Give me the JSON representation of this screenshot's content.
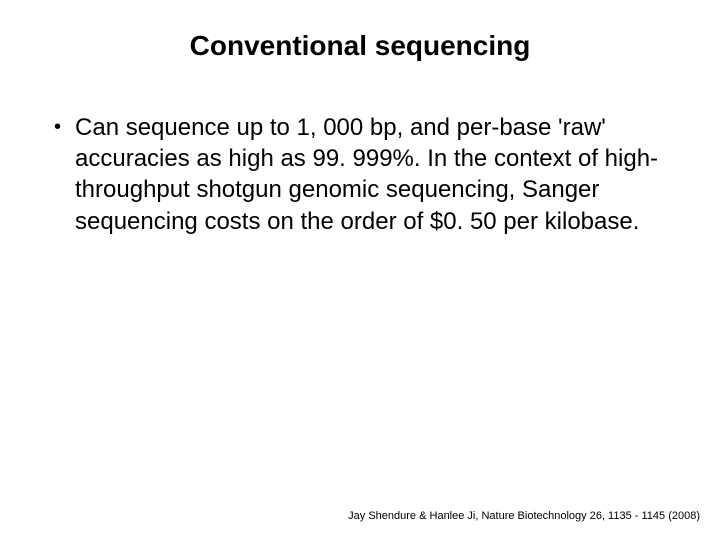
{
  "slide": {
    "title": "Conventional sequencing",
    "title_fontsize": 28,
    "title_fontweight": "bold",
    "bullet": {
      "marker": "•",
      "text": "Can sequence up to 1, 000 bp, and per-base 'raw' accuracies as high as 99. 999%. In the context of high-throughput shotgun genomic sequencing, Sanger sequencing costs on the order of $0. 50 per kilobase.",
      "fontsize": 24
    },
    "citation": "Jay Shendure & Hanlee Ji, Nature Biotechnology 26, 1135 - 1145 (2008)",
    "citation_fontsize": 11,
    "background_color": "#ffffff",
    "text_color": "#000000"
  }
}
